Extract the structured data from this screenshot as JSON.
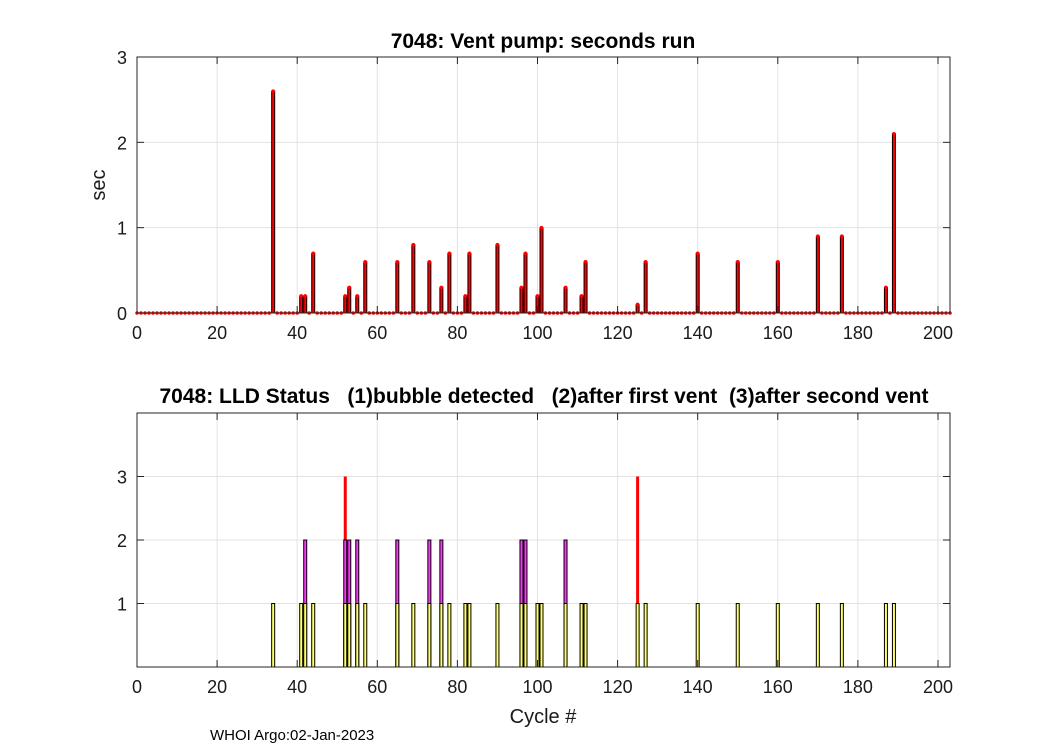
{
  "footer": "WHOI Argo:02-Jan-2023",
  "chart_data": [
    {
      "type": "bar",
      "title": "7048: Vent pump: seconds run",
      "xlabel": "",
      "ylabel": "sec",
      "xlim": [
        0,
        203
      ],
      "ylim": [
        0,
        3
      ],
      "xticks": [
        0,
        20,
        40,
        60,
        80,
        100,
        120,
        140,
        160,
        180,
        200
      ],
      "yticks": [
        0,
        1,
        2,
        3
      ],
      "grid": true,
      "bar_color": "#ff0000",
      "edge_color": "#000000",
      "marker_color": "#ff0000",
      "n_cycles": 203,
      "bars": [
        {
          "x": 34,
          "y": 2.6
        },
        {
          "x": 41,
          "y": 0.2
        },
        {
          "x": 42,
          "y": 0.2
        },
        {
          "x": 44,
          "y": 0.7
        },
        {
          "x": 52,
          "y": 0.2
        },
        {
          "x": 53,
          "y": 0.3
        },
        {
          "x": 55,
          "y": 0.2
        },
        {
          "x": 57,
          "y": 0.6
        },
        {
          "x": 65,
          "y": 0.6
        },
        {
          "x": 69,
          "y": 0.8
        },
        {
          "x": 73,
          "y": 0.6
        },
        {
          "x": 76,
          "y": 0.3
        },
        {
          "x": 78,
          "y": 0.7
        },
        {
          "x": 82,
          "y": 0.2
        },
        {
          "x": 83,
          "y": 0.7
        },
        {
          "x": 90,
          "y": 0.8
        },
        {
          "x": 96,
          "y": 0.3
        },
        {
          "x": 97,
          "y": 0.7
        },
        {
          "x": 100,
          "y": 0.2
        },
        {
          "x": 101,
          "y": 1.0
        },
        {
          "x": 107,
          "y": 0.3
        },
        {
          "x": 111,
          "y": 0.2
        },
        {
          "x": 112,
          "y": 0.6
        },
        {
          "x": 125,
          "y": 0.1
        },
        {
          "x": 127,
          "y": 0.6
        },
        {
          "x": 140,
          "y": 0.7
        },
        {
          "x": 150,
          "y": 0.6
        },
        {
          "x": 160,
          "y": 0.6
        },
        {
          "x": 170,
          "y": 0.9
        },
        {
          "x": 176,
          "y": 0.9
        },
        {
          "x": 187,
          "y": 0.3
        },
        {
          "x": 189,
          "y": 2.1
        }
      ]
    },
    {
      "type": "bar",
      "title": "7048: LLD Status   (1)bubble detected   (2)after first vent  (3)after second vent",
      "xlabel": "Cycle #",
      "ylabel": "",
      "xlim": [
        0,
        203
      ],
      "ylim": [
        0,
        4
      ],
      "xticks": [
        0,
        20,
        40,
        60,
        80,
        100,
        120,
        140,
        160,
        180,
        200
      ],
      "yticks": [
        1,
        2,
        3
      ],
      "grid": true,
      "series": [
        {
          "name": "(1)bubble detected",
          "color": "#ffff66",
          "value": 1,
          "x": [
            34,
            41,
            42,
            44,
            52,
            53,
            55,
            57,
            65,
            69,
            73,
            76,
            78,
            82,
            83,
            90,
            96,
            97,
            100,
            101,
            107,
            111,
            112,
            125,
            127,
            140,
            150,
            160,
            170,
            176,
            187,
            189
          ]
        },
        {
          "name": "(2)after first vent",
          "color": "#ff33ff",
          "value": 2,
          "x": [
            42,
            52,
            53,
            55,
            65,
            73,
            76,
            96,
            97,
            107
          ]
        },
        {
          "name": "(3)after second vent",
          "color": "#ff0000",
          "value": 3,
          "x": [
            52,
            125
          ]
        }
      ]
    }
  ]
}
